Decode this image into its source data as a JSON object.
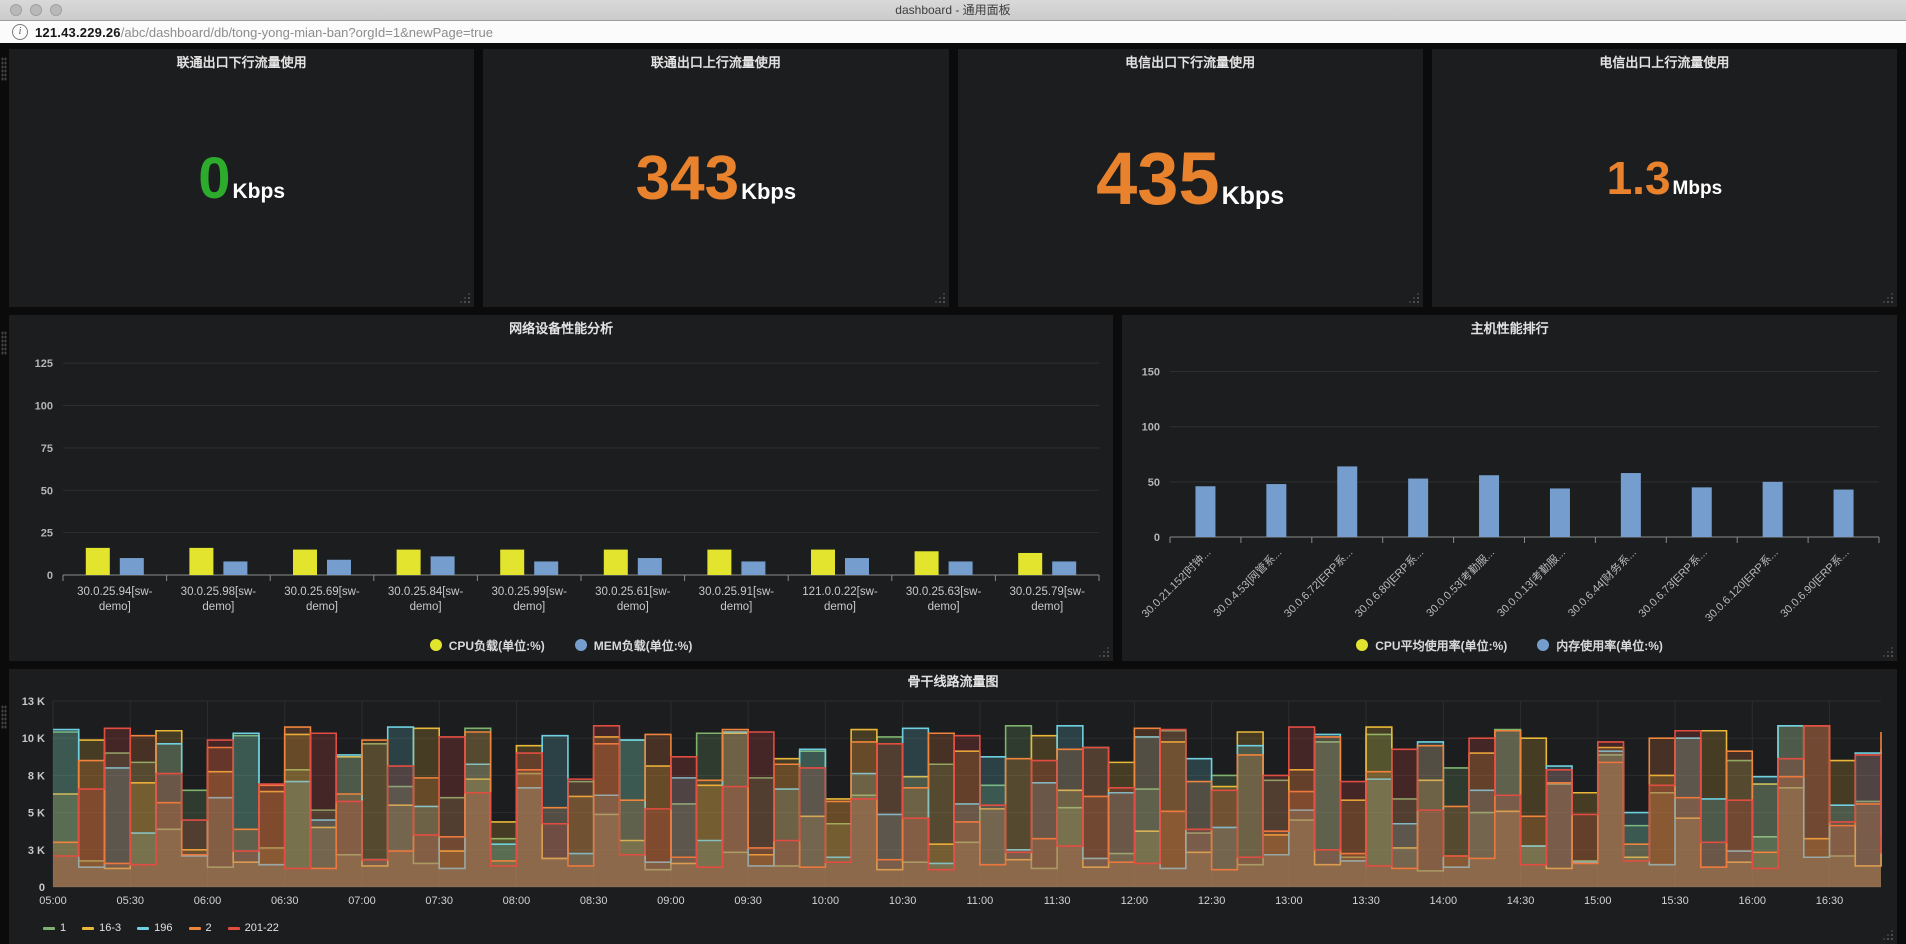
{
  "window": {
    "title": "dashboard - 通用面板"
  },
  "browser": {
    "url_host": "121.43.229.26",
    "url_path": "/abc/dashboard/db/tong-yong-mian-ban?orgId=1&newPage=true",
    "info_icon": "i"
  },
  "stats": [
    {
      "title": "联通出口下行流量使用",
      "value": "0",
      "unit": "Kbps",
      "color": "#2cab2c"
    },
    {
      "title": "联通出口上行流量使用",
      "value": "343",
      "unit": "Kbps",
      "color": "#e8822d"
    },
    {
      "title": "电信出口下行流量使用",
      "value": "435",
      "unit": "Kbps",
      "color": "#e8822d"
    },
    {
      "title": "电信出口上行流量使用",
      "value": "1.3",
      "unit": "Mbps",
      "color": "#e8822d"
    }
  ],
  "chart_data": [
    {
      "id": "net-perf",
      "type": "bar",
      "title": "网络设备性能分析",
      "categories": [
        "30.0.25.94[sw-demo]",
        "30.0.25.98[sw-demo]",
        "30.0.25.69[sw-demo]",
        "30.0.25.84[sw-demo]",
        "30.0.25.99[sw-demo]",
        "30.0.25.61[sw-demo]",
        "30.0.25.91[sw-demo]",
        "121.0.0.22[sw-demo]",
        "30.0.25.63[sw-demo]",
        "30.0.25.79[sw-demo]"
      ],
      "series": [
        {
          "name": "CPU负载(单位:%)",
          "color": "#e3e42d",
          "values": [
            16,
            16,
            15,
            15,
            15,
            15,
            15,
            15,
            14,
            13
          ]
        },
        {
          "name": "MEM负载(单位:%)",
          "color": "#759dce",
          "values": [
            10,
            8,
            9,
            11,
            8,
            10,
            8,
            10,
            8,
            8
          ]
        }
      ],
      "yticks": [
        0,
        25,
        50,
        75,
        100,
        125
      ],
      "ylim": [
        0,
        131
      ],
      "legend_position": "bottom-center",
      "grid": true
    },
    {
      "id": "host-perf",
      "type": "bar",
      "title": "主机性能排行",
      "categories": [
        "30.0.21.152[时钟...",
        "30.0.4.53[网管系...",
        "30.0.6.72[ERP系...",
        "30.0.6.80[ERP系...",
        "30.0.0.53[考勤服...",
        "30.0.0.13[考勤服...",
        "30.0.6.44[财务系...",
        "30.0.6.73[ERP系...",
        "30.0.6.120[ERP系...",
        "30.0.6.90[ERP系..."
      ],
      "series": [
        {
          "name": "CPU平均使用率(单位:%)",
          "color": "#e3e42d",
          "values": []
        },
        {
          "name": "内存使用率(单位:%)",
          "color": "#759dce",
          "values": [
            46,
            48,
            64,
            53,
            56,
            44,
            58,
            45,
            50,
            43
          ]
        }
      ],
      "yticks": [
        0,
        50,
        100,
        150
      ],
      "ylim": [
        0,
        165
      ],
      "legend_position": "bottom-center",
      "grid": true
    },
    {
      "id": "backbone",
      "type": "line",
      "line_style": "step",
      "title": "骨干线路流量图",
      "x_tick_labels": [
        "05:00",
        "05:30",
        "06:00",
        "06:30",
        "07:00",
        "07:30",
        "08:00",
        "08:30",
        "09:00",
        "09:30",
        "10:00",
        "10:30",
        "11:00",
        "11:30",
        "12:00",
        "12:30",
        "13:00",
        "13:30",
        "14:00",
        "14:30",
        "15:00",
        "15:30",
        "16:00",
        "16:30"
      ],
      "points_per_series": 72,
      "tick_every_points": 3,
      "ytick_values": [
        0,
        3000,
        5000,
        8000,
        10000,
        13000
      ],
      "ytick_labels": [
        "0",
        "3 K",
        "5 K",
        "8 K",
        "10 K",
        "13 K"
      ],
      "fill_opacity": 0.2,
      "grid": true,
      "legend_position": "bottom-left",
      "series": [
        {
          "name": "1",
          "color": "#7EB26D",
          "values": [
            10500,
            2100,
            9200,
            8700,
            4100,
            6800,
            1600,
            10200,
            3100,
            8300,
            5200,
            2600,
            9700,
            7100,
            1900,
            6200,
            10800,
            3600,
            8100,
            2300,
            7500,
            4900,
            9900,
            1400,
            5700,
            10400,
            2800,
            7800,
            1700,
            9300,
            4400,
            6400,
            10100,
            2000,
            8600,
            3400,
            7200,
            11000,
            1500,
            5400,
            9500,
            2700,
            6900,
            10600,
            3900,
            8000,
            1800,
            7600,
            4600,
            9800,
            2400,
            10300,
            6100,
            1300,
            8400,
            5000,
            10700,
            3200,
            7300,
            2100,
            9100,
            4300,
            6600,
            10000,
            1600,
            8800,
            3700,
            7000,
            11000,
            2500,
            5900,
            9400
          ]
        },
        {
          "name": "16-3",
          "color": "#EAB839",
          "values": [
            6500,
            9900,
            1500,
            7400,
            10600,
            3000,
            8200,
            2000,
            6700,
            10300,
            4200,
            9000,
            1700,
            5600,
            10800,
            2900,
            7700,
            4500,
            9600,
            2300,
            6300,
            10100,
            3500,
            8500,
            1900,
            7200,
            10400,
            2600,
            8900,
            4800,
            6100,
            10700,
            1400,
            7900,
            3300,
            9300,
            5300,
            2200,
            10200,
            6800,
            1600,
            8700,
            4000,
            9800,
            2800,
            7100,
            10500,
            3800,
            8300,
            1800,
            6000,
            10900,
            3100,
            7600,
            2500,
            9200,
            5100,
            10000,
            1500,
            6600,
            9500,
            2400,
            8000,
            4700,
            10600,
            2000,
            7300,
            11000,
            3600,
            8800,
            1700,
            5800
          ]
        },
        {
          "name": "196",
          "color": "#6ED0E0",
          "values": [
            10700,
            1600,
            8400,
            3900,
            9700,
            2500,
            6200,
            10400,
            1800,
            7500,
            4600,
            9100,
            2200,
            10900,
            5500,
            1500,
            8600,
            3300,
            7000,
            10200,
            2700,
            6400,
            9900,
            2000,
            7800,
            3500,
            10500,
            1700,
            6900,
            9400,
            2400,
            8100,
            4900,
            10800,
            1900,
            5700,
            9000,
            3000,
            7400,
            11000,
            2300,
            6600,
            10100,
            1500,
            8900,
            4200,
            9600,
            2600,
            5200,
            10300,
            2100,
            7700,
            4400,
            9800,
            1600,
            6800,
            10600,
            3200,
            8500,
            2000,
            9300,
            5000,
            1800,
            10000,
            6100,
            2900,
            7900,
            11000,
            2400,
            5600,
            9200,
            3700
          ]
        },
        {
          "name": "2",
          "color": "#EF843C",
          "values": [
            3400,
            8800,
            1900,
            10200,
            5800,
            2600,
            9500,
            4100,
            7200,
            10900,
            1500,
            6500,
            9900,
            2900,
            7800,
            3700,
            10500,
            2100,
            8300,
            5400,
            1700,
            9700,
            6000,
            10300,
            2400,
            7600,
            10700,
            3100,
            8600,
            1600,
            5900,
            9800,
            2200,
            7000,
            10400,
            4500,
            1800,
            8900,
            3600,
            9400,
            6300,
            2000,
            10800,
            5100,
            7500,
            1400,
            9100,
            4000,
            6700,
            10100,
            2700,
            8200,
            1500,
            9600,
            5500,
            2300,
            10600,
            4800,
            7400,
            1900,
            8700,
            3300,
            10000,
            6200,
            1600,
            9300,
            2800,
            7900,
            11000,
            4300,
            5700,
            10500
          ]
        },
        {
          "name": "201-22",
          "color": "#E24D42",
          "values": [
            2500,
            6900,
            10800,
            1800,
            8100,
            4600,
            9900,
            2900,
            7300,
            1500,
            10400,
            5900,
            2200,
            8500,
            3800,
            10100,
            6600,
            1700,
            9200,
            4400,
            7700,
            11000,
            2600,
            5300,
            9000,
            1600,
            7100,
            10500,
            3500,
            8400,
            2000,
            6100,
            9700,
            4700,
            1400,
            10200,
            5600,
            2800,
            8800,
            3200,
            9500,
            7000,
            1900,
            10700,
            4100,
            6800,
            2400,
            8000,
            10900,
            3000,
            7500,
            1700,
            9400,
            5200,
            2500,
            10000,
            6400,
            1800,
            8300,
            4900,
            9800,
            2100,
            7200,
            10600,
            3400,
            6000,
            1500,
            8900,
            11000,
            4500,
            9100,
            2700
          ]
        }
      ]
    }
  ]
}
